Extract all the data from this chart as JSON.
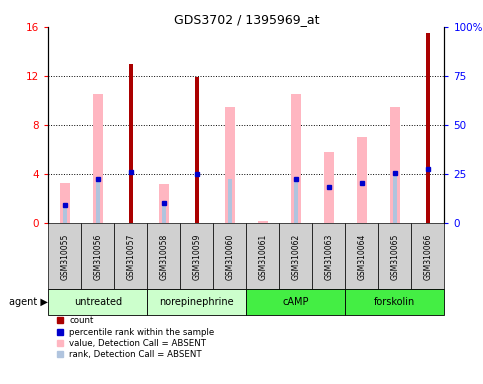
{
  "title": "GDS3702 / 1395969_at",
  "samples": [
    "GSM310055",
    "GSM310056",
    "GSM310057",
    "GSM310058",
    "GSM310059",
    "GSM310060",
    "GSM310061",
    "GSM310062",
    "GSM310063",
    "GSM310064",
    "GSM310065",
    "GSM310066"
  ],
  "agents": [
    {
      "label": "untreated",
      "color": "#CCFFCC",
      "start": 0,
      "end": 3
    },
    {
      "label": "norepinephrine",
      "color": "#CCFFCC",
      "start": 3,
      "end": 6
    },
    {
      "label": "cAMP",
      "color": "#44EE44",
      "start": 6,
      "end": 9
    },
    {
      "label": "forskolin",
      "color": "#44EE44",
      "start": 9,
      "end": 12
    }
  ],
  "count_values": [
    null,
    null,
    13.0,
    null,
    11.9,
    null,
    null,
    null,
    null,
    null,
    null,
    15.5
  ],
  "rank_values": [
    1.5,
    3.6,
    4.2,
    1.7,
    4.0,
    null,
    null,
    3.6,
    3.0,
    3.3,
    4.1,
    4.4
  ],
  "absent_value_values": [
    3.3,
    10.5,
    null,
    3.2,
    null,
    9.5,
    0.2,
    10.5,
    5.8,
    7.0,
    9.5,
    null
  ],
  "absent_rank_values": [
    1.5,
    3.6,
    null,
    1.7,
    null,
    3.6,
    null,
    3.6,
    null,
    null,
    4.1,
    null
  ],
  "ylim_left": [
    0,
    16
  ],
  "ylim_right": [
    0,
    100
  ],
  "yticks_left": [
    0,
    4,
    8,
    12,
    16
  ],
  "yticks_right": [
    0,
    25,
    50,
    75,
    100
  ],
  "yticklabels_right": [
    "0",
    "25",
    "50",
    "75",
    "100%"
  ],
  "count_color": "#AA0000",
  "rank_color": "#0000CC",
  "absent_value_color": "#FFB6C1",
  "absent_rank_color": "#B0C4DE",
  "bg_color": "#FFFFFF",
  "legend_items": [
    {
      "color": "#AA0000",
      "label": "count"
    },
    {
      "color": "#0000CC",
      "label": "percentile rank within the sample"
    },
    {
      "color": "#FFB6C1",
      "label": "value, Detection Call = ABSENT"
    },
    {
      "color": "#B0C4DE",
      "label": "rank, Detection Call = ABSENT"
    }
  ]
}
